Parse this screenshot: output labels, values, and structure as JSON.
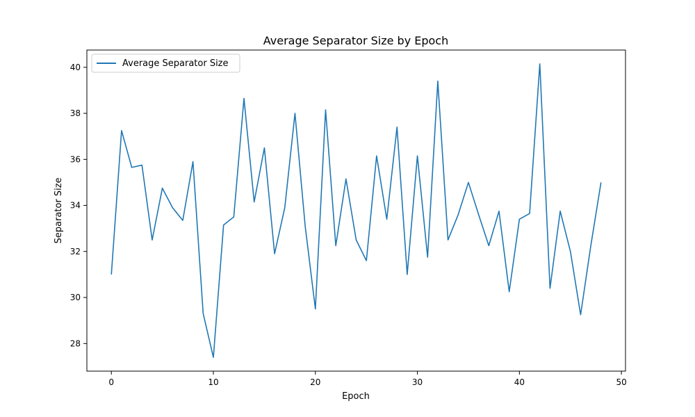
{
  "chart_data": {
    "type": "line",
    "title": "Average Separator Size by Epoch",
    "xlabel": "Epoch",
    "ylabel": "Separator Size",
    "xlim": [
      -2.4,
      50.4
    ],
    "ylim": [
      26.8,
      40.75
    ],
    "xticks": [
      0,
      10,
      20,
      30,
      40,
      50
    ],
    "yticks": [
      28,
      30,
      32,
      34,
      36,
      38,
      40
    ],
    "grid": false,
    "legend_position": "top-left",
    "series": [
      {
        "name": "Average Separator Size",
        "color": "#1f77b4",
        "x": [
          0,
          1,
          2,
          3,
          4,
          5,
          6,
          7,
          8,
          9,
          10,
          11,
          12,
          13,
          14,
          15,
          16,
          17,
          18,
          19,
          20,
          21,
          22,
          23,
          24,
          25,
          26,
          27,
          28,
          29,
          30,
          31,
          32,
          33,
          34,
          35,
          36,
          37,
          38,
          39,
          40,
          41,
          42,
          43,
          44,
          45,
          46,
          47,
          48
        ],
        "y": [
          31.0,
          37.25,
          35.65,
          35.75,
          32.5,
          34.75,
          33.9,
          33.35,
          35.9,
          29.3,
          27.4,
          33.15,
          33.5,
          38.65,
          34.15,
          36.5,
          31.9,
          33.9,
          38.0,
          33.1,
          29.5,
          38.15,
          32.25,
          35.15,
          32.5,
          31.6,
          36.15,
          33.4,
          37.4,
          31.0,
          36.15,
          31.75,
          39.4,
          32.5,
          33.6,
          35.0,
          33.6,
          32.25,
          33.75,
          30.25,
          33.4,
          33.65,
          40.15,
          30.4,
          33.75,
          32.0,
          29.25,
          32.25,
          35.0
        ]
      }
    ]
  }
}
